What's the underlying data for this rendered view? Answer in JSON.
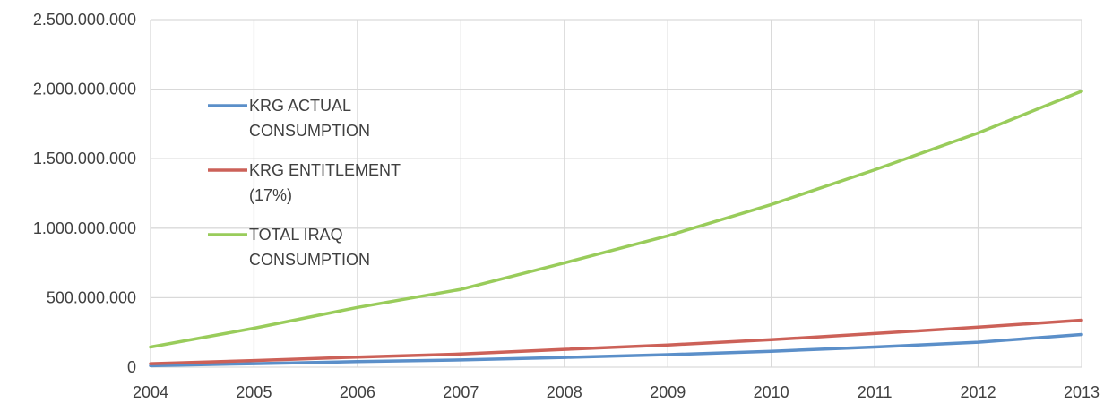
{
  "chart_data": {
    "type": "line",
    "title": "",
    "xlabel": "",
    "ylabel": "",
    "x": [
      2004,
      2005,
      2006,
      2007,
      2008,
      2009,
      2010,
      2011,
      2012,
      2013
    ],
    "x_tick_labels": [
      "2004",
      "2005",
      "2006",
      "2007",
      "2008",
      "2009",
      "2010",
      "2011",
      "2012",
      "2013"
    ],
    "ylim": [
      0,
      2500000000
    ],
    "y_ticks": [
      0,
      500000000,
      1000000000,
      1500000000,
      2000000000,
      2500000000
    ],
    "y_tick_labels": [
      "0",
      "500.000.000",
      "1.000.000.000",
      "1.500.000.000",
      "2.000.000.000",
      "2.500.000.000"
    ],
    "grid": true,
    "legend_position": "left",
    "series": [
      {
        "name": "KRG ACTUAL CONSUMPTION",
        "legend_lines": [
          "KRG ACTUAL",
          "CONSUMPTION"
        ],
        "color": "#5b8fc9",
        "values": [
          10000000,
          25000000,
          40000000,
          52000000,
          70000000,
          90000000,
          115000000,
          145000000,
          180000000,
          235000000
        ]
      },
      {
        "name": "KRG ENTITLEMENT (17%)",
        "legend_lines": [
          "KRG ENTITLEMENT",
          "(17%)"
        ],
        "color": "#cc6158",
        "values": [
          25000000,
          48000000,
          73000000,
          95000000,
          128000000,
          160000000,
          198000000,
          242000000,
          288000000,
          338000000
        ]
      },
      {
        "name": "TOTAL IRAQ CONSUMPTION",
        "legend_lines": [
          "TOTAL IRAQ",
          "CONSUMPTION"
        ],
        "color": "#99cc5b",
        "values": [
          145000000,
          280000000,
          430000000,
          560000000,
          750000000,
          945000000,
          1170000000,
          1420000000,
          1685000000,
          1985000000
        ]
      }
    ]
  }
}
